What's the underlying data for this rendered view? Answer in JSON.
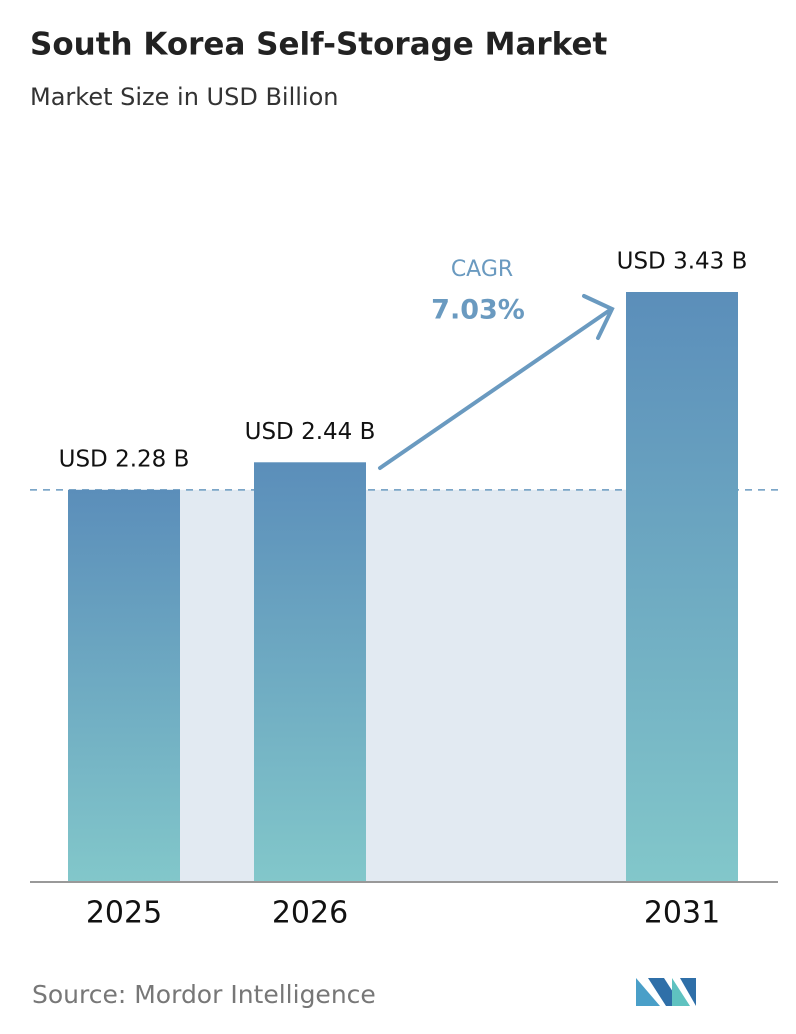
{
  "chart_data": {
    "type": "bar",
    "title": "South Korea Self-Storage Market",
    "subtitle": "Market Size in USD Billion",
    "categories": [
      "2025",
      "2026",
      "2031"
    ],
    "values": [
      2.28,
      2.44,
      3.43
    ],
    "value_labels": [
      "USD 2.28 B",
      "USD 2.44 B",
      "USD 3.43 B"
    ],
    "colors": [
      "#5b8eba",
      "#82c7ca"
    ],
    "annotation": {
      "label": "CAGR",
      "value": "7.03%"
    },
    "source": "Source:  Mordor Intelligence"
  }
}
